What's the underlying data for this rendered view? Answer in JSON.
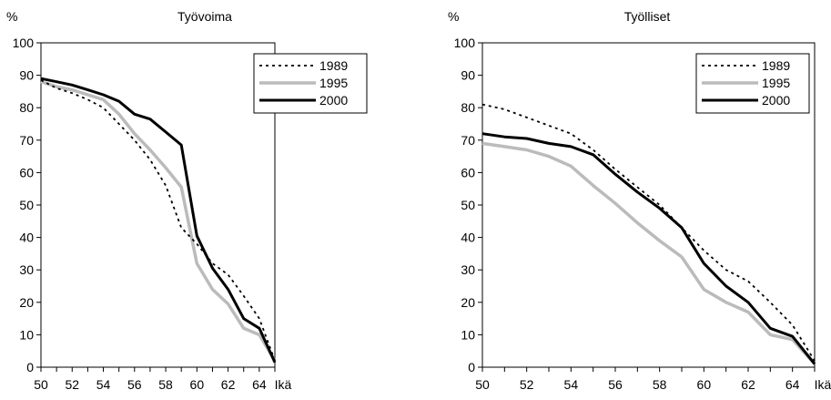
{
  "chart_data": [
    {
      "type": "line",
      "title": "Työvoima",
      "ylabel": "%",
      "xlabel": "Ikä",
      "ylim": [
        0,
        100
      ],
      "xlim": [
        50,
        65
      ],
      "yticks": [
        0,
        10,
        20,
        30,
        40,
        50,
        60,
        70,
        80,
        90,
        100
      ],
      "xticks": [
        50,
        52,
        54,
        56,
        58,
        60,
        62,
        64
      ],
      "legend_position": "top-right",
      "x": [
        50,
        51,
        52,
        53,
        54,
        55,
        56,
        57,
        58,
        59,
        60,
        61,
        62,
        63,
        64,
        65
      ],
      "series": [
        {
          "name": "1989",
          "style": "dotted",
          "color": "#000000",
          "values": [
            88.5,
            86,
            84.5,
            82.5,
            80,
            75,
            70,
            64,
            56,
            43,
            38,
            32,
            28.5,
            22,
            15,
            2
          ]
        },
        {
          "name": "1995",
          "style": "solid",
          "color": "#bbbbbb",
          "values": [
            88,
            86.5,
            85.5,
            84,
            82.5,
            78,
            72,
            67,
            61.5,
            55.5,
            32,
            24,
            19.5,
            12,
            10,
            2
          ]
        },
        {
          "name": "2000",
          "style": "solid",
          "color": "#000000",
          "values": [
            89,
            88,
            87,
            85.5,
            84,
            82,
            78,
            76.5,
            72.5,
            68.5,
            40.5,
            30.5,
            24,
            15,
            12,
            1.5
          ]
        }
      ]
    },
    {
      "type": "line",
      "title": "Työlliset",
      "ylabel": "%",
      "xlabel": "Ikä",
      "ylim": [
        0,
        100
      ],
      "xlim": [
        50,
        65
      ],
      "yticks": [
        0,
        10,
        20,
        30,
        40,
        50,
        60,
        70,
        80,
        90,
        100
      ],
      "xticks": [
        50,
        52,
        54,
        56,
        58,
        60,
        62,
        64
      ],
      "legend_position": "top-right",
      "x": [
        50,
        51,
        52,
        53,
        54,
        55,
        56,
        57,
        58,
        59,
        60,
        61,
        62,
        63,
        64,
        65
      ],
      "series": [
        {
          "name": "1989",
          "style": "dotted",
          "color": "#000000",
          "values": [
            81,
            79.5,
            77,
            74.5,
            72,
            67,
            61,
            55.5,
            50,
            43,
            36,
            30,
            26.5,
            20,
            13,
            2
          ]
        },
        {
          "name": "1995",
          "style": "solid",
          "color": "#bbbbbb",
          "values": [
            69,
            68,
            67,
            65,
            62,
            56,
            50.5,
            44.5,
            39,
            34,
            24,
            20,
            17,
            10,
            8.5,
            1
          ]
        },
        {
          "name": "2000",
          "style": "solid",
          "color": "#000000",
          "values": [
            72,
            71,
            70.5,
            69,
            68,
            65.5,
            59.5,
            54,
            49,
            43,
            32,
            25,
            20,
            12,
            9.5,
            1
          ]
        }
      ]
    }
  ]
}
